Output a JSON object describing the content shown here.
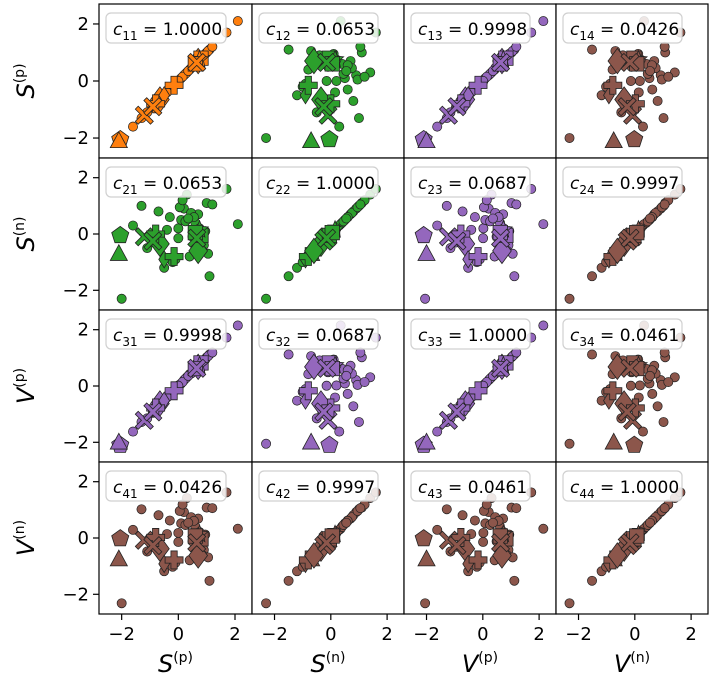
{
  "chart_data": {
    "type": "scatter-matrix",
    "variables": [
      "S^(p)",
      "S^(n)",
      "V^(p)",
      "V^(n)"
    ],
    "row_labels": [
      {
        "base": "S",
        "sup": "(p)"
      },
      {
        "base": "S",
        "sup": "(n)"
      },
      {
        "base": "V",
        "sup": "(p)"
      },
      {
        "base": "V",
        "sup": "(n)"
      }
    ],
    "col_labels": [
      {
        "base": "S",
        "sup": "(p)"
      },
      {
        "base": "S",
        "sup": "(n)"
      },
      {
        "base": "V",
        "sup": "(p)"
      },
      {
        "base": "V",
        "sup": "(n)"
      }
    ],
    "panels": [
      {
        "row": 1,
        "col": 1,
        "label": "c11",
        "value": "1.0000",
        "color": "#ff7f0e"
      },
      {
        "row": 1,
        "col": 2,
        "label": "c12",
        "value": "0.0653",
        "color": "#2ca02c"
      },
      {
        "row": 1,
        "col": 3,
        "label": "c13",
        "value": "0.9998",
        "color": "#9467bd"
      },
      {
        "row": 1,
        "col": 4,
        "label": "c14",
        "value": "0.0426",
        "color": "#8c564b"
      },
      {
        "row": 2,
        "col": 1,
        "label": "c21",
        "value": "0.0653",
        "color": "#2ca02c"
      },
      {
        "row": 2,
        "col": 2,
        "label": "c22",
        "value": "1.0000",
        "color": "#2ca02c"
      },
      {
        "row": 2,
        "col": 3,
        "label": "c23",
        "value": "0.0687",
        "color": "#9467bd"
      },
      {
        "row": 2,
        "col": 4,
        "label": "c24",
        "value": "0.9997",
        "color": "#8c564b"
      },
      {
        "row": 3,
        "col": 1,
        "label": "c31",
        "value": "0.9998",
        "color": "#9467bd"
      },
      {
        "row": 3,
        "col": 2,
        "label": "c32",
        "value": "0.0687",
        "color": "#9467bd"
      },
      {
        "row": 3,
        "col": 3,
        "label": "c33",
        "value": "1.0000",
        "color": "#9467bd"
      },
      {
        "row": 3,
        "col": 4,
        "label": "c34",
        "value": "0.0461",
        "color": "#8c564b"
      },
      {
        "row": 4,
        "col": 1,
        "label": "c41",
        "value": "0.0426",
        "color": "#8c564b"
      },
      {
        "row": 4,
        "col": 2,
        "label": "c42",
        "value": "0.9997",
        "color": "#8c564b"
      },
      {
        "row": 4,
        "col": 3,
        "label": "c43",
        "value": "0.0461",
        "color": "#8c564b"
      },
      {
        "row": 4,
        "col": 4,
        "label": "c44",
        "value": "1.0000",
        "color": "#8c564b"
      }
    ],
    "xlim": [
      -2.8,
      2.6
    ],
    "ylim": [
      -2.7,
      2.7
    ],
    "xticks": [
      -2,
      0,
      2
    ],
    "yticks": [
      -2,
      0,
      2
    ],
    "samples": {
      "Sp": [
        -1.1,
        -0.9,
        -0.5,
        -0.3,
        0.0,
        0.2,
        0.4,
        0.6,
        0.8,
        1.0,
        1.1,
        -1.6,
        -1.3,
        0.9,
        0.7,
        0.5,
        0.3,
        0.1,
        -0.1,
        -0.7,
        0.95,
        -2.0,
        2.1,
        1.7,
        0.85,
        0.75,
        0.65,
        0.45,
        0.25,
        0.05,
        -0.2,
        -0.4,
        -0.6,
        0.55,
        0.15,
        -0.8,
        1.05,
        0.35,
        1.2,
        0.0
      ],
      "Sn": [
        -0.5,
        -0.3,
        -1.2,
        0.6,
        0.2,
        0.9,
        -0.8,
        0.4,
        0.0,
        1.1,
        -1.5,
        0.3,
        1.0,
        -0.4,
        0.7,
        -0.1,
        1.4,
        0.5,
        -0.9,
        0.8,
        0.1,
        -2.3,
        0.35,
        1.6,
        -0.6,
        0.2,
        -0.2,
        0.75,
        0.45,
        0.95,
        -1.0,
        0.15,
        -0.35,
        0.6,
        1.2,
        0.0,
        -0.7,
        0.55,
        1.05,
        -0.15
      ],
      "Vp": [
        -1.15,
        -0.95,
        -0.52,
        -0.28,
        0.02,
        0.21,
        0.42,
        0.61,
        0.79,
        1.02,
        1.12,
        -1.62,
        -1.28,
        0.91,
        0.72,
        0.49,
        0.31,
        0.09,
        -0.11,
        -0.72,
        0.94,
        -2.05,
        2.15,
        1.72,
        0.86,
        0.74,
        0.66,
        0.44,
        0.26,
        0.04,
        -0.21,
        -0.41,
        -0.62,
        0.56,
        0.14,
        -0.82,
        1.06,
        0.36,
        1.19,
        0.01
      ],
      "Vn": [
        -0.48,
        -0.31,
        -1.18,
        0.62,
        0.18,
        0.92,
        -0.79,
        0.41,
        0.02,
        1.08,
        -1.52,
        0.29,
        1.02,
        -0.42,
        0.69,
        -0.12,
        1.42,
        0.52,
        -0.88,
        0.81,
        0.12,
        -2.32,
        0.33,
        1.62,
        -0.61,
        0.21,
        -0.19,
        0.74,
        0.46,
        0.96,
        -1.02,
        0.14,
        -0.36,
        0.61,
        1.19,
        0.02,
        -0.69,
        0.54,
        1.06,
        -0.14
      ]
    },
    "marker_points": [
      {
        "shape": "pentagon",
        "Sp": -2.05,
        "Sn": -0.05,
        "Vp": -2.1,
        "Vn": -0.02
      },
      {
        "shape": "triangle",
        "Sp": -2.1,
        "Sn": -0.7,
        "Vp": -2.0,
        "Vn": -0.75
      },
      {
        "shape": "diamond",
        "Sp": -0.65,
        "Sn": -0.35,
        "Vp": -0.62,
        "Vn": -0.38
      },
      {
        "shape": "diamond-small",
        "Sp": -0.5,
        "Sn": -0.9,
        "Vp": -0.52,
        "Vn": -0.92
      },
      {
        "shape": "x",
        "Sp": -1.2,
        "Sn": -0.1,
        "Vp": -1.22,
        "Vn": -0.08
      },
      {
        "shape": "plus",
        "Sp": -0.8,
        "Sn": 0.0,
        "Vp": -0.78,
        "Vn": 0.02
      },
      {
        "shape": "x",
        "Sp": -0.9,
        "Sn": -0.25,
        "Vp": -0.92,
        "Vn": -0.27
      },
      {
        "shape": "plus",
        "Sp": -0.15,
        "Sn": -0.8,
        "Vp": -0.17,
        "Vn": -0.78
      },
      {
        "shape": "diamond",
        "Sp": 0.7,
        "Sn": -0.6,
        "Vp": 0.68,
        "Vn": -0.62
      },
      {
        "shape": "square",
        "Sp": 0.8,
        "Sn": -0.05,
        "Vp": 0.82,
        "Vn": -0.03
      },
      {
        "shape": "star",
        "Sp": 0.75,
        "Sn": 0.15,
        "Vp": 0.73,
        "Vn": 0.13
      },
      {
        "shape": "square",
        "Sp": 0.6,
        "Sn": 0.05,
        "Vp": 0.62,
        "Vn": 0.07
      },
      {
        "shape": "x",
        "Sp": 0.65,
        "Sn": -0.15,
        "Vp": 0.63,
        "Vn": -0.17
      }
    ]
  }
}
